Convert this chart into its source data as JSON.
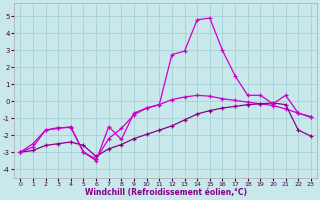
{
  "xlabel": "Windchill (Refroidissement éolien,°C)",
  "xlim": [
    -0.5,
    23.5
  ],
  "ylim": [
    -4.5,
    5.8
  ],
  "xticks": [
    0,
    1,
    2,
    3,
    4,
    5,
    6,
    7,
    8,
    9,
    10,
    11,
    12,
    13,
    14,
    15,
    16,
    17,
    18,
    19,
    20,
    21,
    22,
    23
  ],
  "yticks": [
    -4,
    -3,
    -2,
    -1,
    0,
    1,
    2,
    3,
    4,
    5
  ],
  "bg": "#c8e8ec",
  "grid_color": "#a0ccd4",
  "lc1": "#cc00cc",
  "lc2": "#880088",
  "lc3": "#cc00cc",
  "line1_x": [
    0,
    1,
    2,
    3,
    4,
    5,
    6,
    7,
    8,
    9,
    10,
    11,
    12,
    13,
    14,
    15,
    16,
    17,
    18,
    19,
    20,
    21,
    22,
    23
  ],
  "line1_y": [
    -3.0,
    -2.5,
    -1.7,
    -1.6,
    -1.5,
    -3.0,
    -3.4,
    -2.2,
    -1.6,
    -0.8,
    -0.4,
    -0.2,
    0.1,
    0.25,
    0.35,
    0.3,
    0.15,
    0.05,
    -0.05,
    -0.15,
    -0.25,
    -0.45,
    -0.7,
    -0.95
  ],
  "line2_x": [
    0,
    1,
    2,
    3,
    4,
    5,
    6,
    7,
    8,
    9,
    10,
    11,
    12,
    13,
    14,
    15,
    16,
    17,
    18,
    19,
    20,
    21,
    22,
    23
  ],
  "line2_y": [
    -3.0,
    -2.9,
    -2.6,
    -2.5,
    -2.4,
    -2.6,
    -3.25,
    -2.8,
    -2.55,
    -2.2,
    -1.95,
    -1.7,
    -1.45,
    -1.1,
    -0.75,
    -0.55,
    -0.4,
    -0.3,
    -0.2,
    -0.15,
    -0.1,
    -0.2,
    -1.7,
    -2.05
  ],
  "line3_x": [
    0,
    1,
    2,
    3,
    4,
    5,
    6,
    7,
    8,
    9,
    10,
    11,
    12,
    13,
    14,
    15,
    16,
    17,
    18,
    19,
    20,
    21,
    22,
    23
  ],
  "line3_y": [
    -3.0,
    -2.7,
    -1.7,
    -1.55,
    -1.55,
    -3.0,
    -3.5,
    -1.5,
    -2.25,
    -0.7,
    -0.4,
    -0.2,
    2.75,
    2.95,
    4.8,
    4.9,
    3.0,
    1.5,
    0.35,
    0.35,
    -0.15,
    0.35,
    -0.7,
    -0.9
  ]
}
